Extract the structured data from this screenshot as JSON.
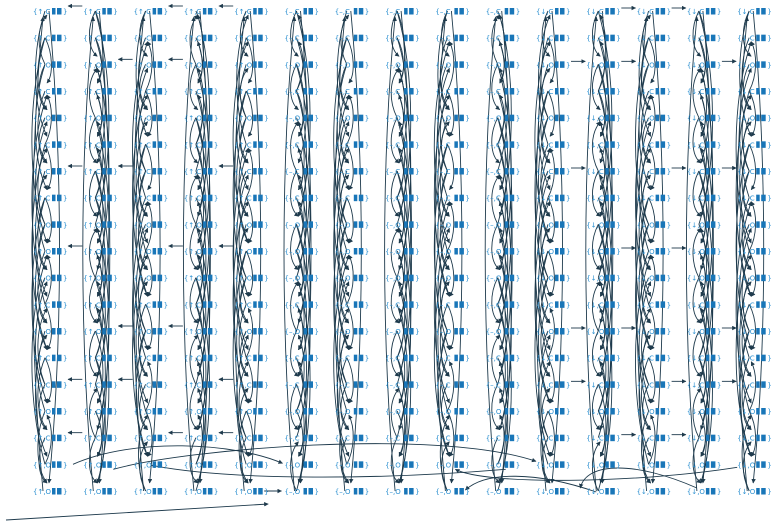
{
  "diagram": {
    "columns": [
      {
        "direction": "↑",
        "top_phase": "C",
        "bottom_phase": "O"
      },
      {
        "direction": "↑",
        "top_phase": "C",
        "bottom_phase": "O"
      },
      {
        "direction": "↑",
        "top_phase": "C",
        "bottom_phase": "O"
      },
      {
        "direction": "↑",
        "top_phase": "C",
        "bottom_phase": "O"
      },
      {
        "direction": "↑",
        "top_phase": "C",
        "bottom_phase": "O"
      },
      {
        "direction": "–",
        "top_phase": "C",
        "bottom_phase": "O"
      },
      {
        "direction": "–",
        "top_phase": "C",
        "bottom_phase": "O"
      },
      {
        "direction": "–",
        "top_phase": "C",
        "bottom_phase": "O"
      },
      {
        "direction": "–",
        "top_phase": "C",
        "bottom_phase": "O"
      },
      {
        "direction": "–",
        "top_phase": "C",
        "bottom_phase": "O"
      },
      {
        "direction": "↓",
        "top_phase": "C",
        "bottom_phase": "O"
      },
      {
        "direction": "↓",
        "top_phase": "C",
        "bottom_phase": "O"
      },
      {
        "direction": "↓",
        "top_phase": "C",
        "bottom_phase": "O"
      },
      {
        "direction": "↓",
        "top_phase": "C",
        "bottom_phase": "O"
      },
      {
        "direction": "↓",
        "top_phase": "C",
        "bottom_phase": "O"
      }
    ],
    "row_phases": [
      "C",
      "O",
      "C",
      "O",
      "C",
      "C",
      "C",
      "O",
      "O",
      "O",
      "C",
      "O",
      "C",
      "C",
      "O",
      "C",
      "O"
    ],
    "colors": {
      "node_text": "#2a8fd0",
      "node_icon": "#1976b8",
      "edge": "#1e3a4c",
      "background": "#ffffff"
    }
  }
}
